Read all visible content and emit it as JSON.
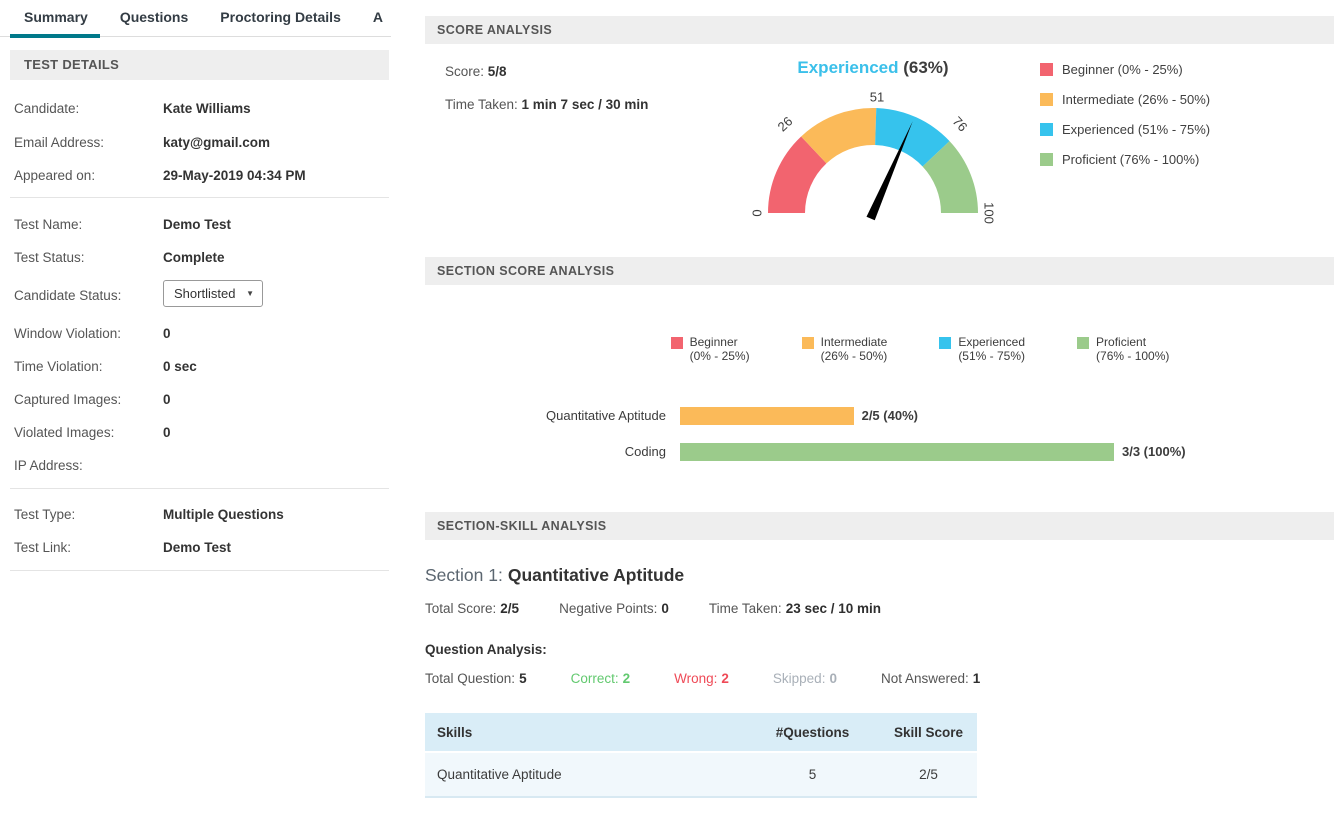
{
  "tabs": {
    "items": [
      {
        "label": "Summary",
        "active": true
      },
      {
        "label": "Questions",
        "active": false
      },
      {
        "label": "Proctoring Details",
        "active": false
      },
      {
        "label": "A",
        "active": false
      }
    ]
  },
  "test_details": {
    "header": "TEST DETAILS",
    "rows": [
      {
        "label": "Candidate:",
        "value": "Kate Williams"
      },
      {
        "label": "Email Address:",
        "value": "katy@gmail.com"
      },
      {
        "label": "Appeared on:",
        "value": "29-May-2019 04:34 PM"
      },
      {
        "label": "Test Name:",
        "value": "Demo Test"
      },
      {
        "label": "Test Status:",
        "value": "Complete"
      },
      {
        "label": "Candidate Status:",
        "value": "Shortlisted"
      },
      {
        "label": "Window Violation:",
        "value": "0"
      },
      {
        "label": "Time Violation:",
        "value": "0 sec"
      },
      {
        "label": "Captured Images:",
        "value": "0"
      },
      {
        "label": "Violated Images:",
        "value": "0"
      },
      {
        "label": "IP Address:",
        "value": ""
      },
      {
        "label": "Test Type:",
        "value": "Multiple Questions"
      },
      {
        "label": "Test Link:",
        "value": "Demo Test"
      }
    ]
  },
  "score_analysis": {
    "header": "SCORE ANALYSIS",
    "score_label": "Score:",
    "score_value": "5/8",
    "time_label": "Time Taken:",
    "time_value": "1 min 7 sec / 30 min",
    "gauge": {
      "type": "gauge",
      "title_level": "Experienced",
      "title_percent": "(63%)",
      "value_percent": 63,
      "axis_range": [
        0,
        100
      ],
      "tick_labels": [
        "0",
        "26",
        "51",
        "76",
        "100"
      ],
      "segments": [
        {
          "name": "Beginner",
          "from": 0,
          "to": 26,
          "color": "#F2646F"
        },
        {
          "name": "Intermediate",
          "from": 26,
          "to": 51,
          "color": "#FBBA59"
        },
        {
          "name": "Experienced",
          "from": 51,
          "to": 76,
          "color": "#36C3ED"
        },
        {
          "name": "Proficient",
          "from": 76,
          "to": 100,
          "color": "#9BCB8B"
        }
      ]
    },
    "legend": [
      {
        "label": "Beginner (0% - 25%)",
        "color": "#F2646F"
      },
      {
        "label": "Intermediate (26% - 50%)",
        "color": "#FBBA59"
      },
      {
        "label": "Experienced (51% - 75%)",
        "color": "#36C3ED"
      },
      {
        "label": "Proficient (76% - 100%)",
        "color": "#9BCB8B"
      }
    ]
  },
  "section_score_analysis": {
    "header": "SECTION SCORE ANALYSIS",
    "chart_type": "bar",
    "legend": [
      {
        "name": "Beginner",
        "range": "(0% - 25%)",
        "color": "#F2646F"
      },
      {
        "name": "Intermediate",
        "range": "(26% - 50%)",
        "color": "#FBBA59"
      },
      {
        "name": "Experienced",
        "range": "(51% - 75%)",
        "color": "#36C3ED"
      },
      {
        "name": "Proficient",
        "range": "(76% - 100%)",
        "color": "#9BCB8B"
      }
    ],
    "bars": [
      {
        "category": "Quantitative Aptitude",
        "value_label": "2/5 (40%)",
        "percent": 40,
        "color": "#FBBA59"
      },
      {
        "category": "Coding",
        "value_label": "3/3 (100%)",
        "percent": 100,
        "color": "#9BCB8B"
      }
    ]
  },
  "section_skill_analysis": {
    "header": "SECTION-SKILL ANALYSIS",
    "section_prefix": "Section 1:",
    "section_name": "Quantitative Aptitude",
    "stats": [
      {
        "label": "Total Score:",
        "value": "2/5"
      },
      {
        "label": "Negative Points:",
        "value": "0"
      },
      {
        "label": "Time Taken:",
        "value": "23 sec / 10 min"
      }
    ],
    "question_analysis_label": "Question Analysis:",
    "question_stats": [
      {
        "label": "Total Question:",
        "value": "5",
        "color": ""
      },
      {
        "label": "Correct:",
        "value": "2",
        "color": "#62C96F"
      },
      {
        "label": "Wrong:",
        "value": "2",
        "color": "#EF4A57"
      },
      {
        "label": "Skipped:",
        "value": "0",
        "color": "#A9B0B8"
      },
      {
        "label": "Not Answered:",
        "value": "1",
        "color": ""
      }
    ],
    "table": {
      "headers": [
        "Skills",
        "#Questions",
        "Skill Score"
      ],
      "rows": [
        {
          "skill": "Quantitative Aptitude",
          "questions": "5",
          "score": "2/5"
        }
      ]
    }
  }
}
